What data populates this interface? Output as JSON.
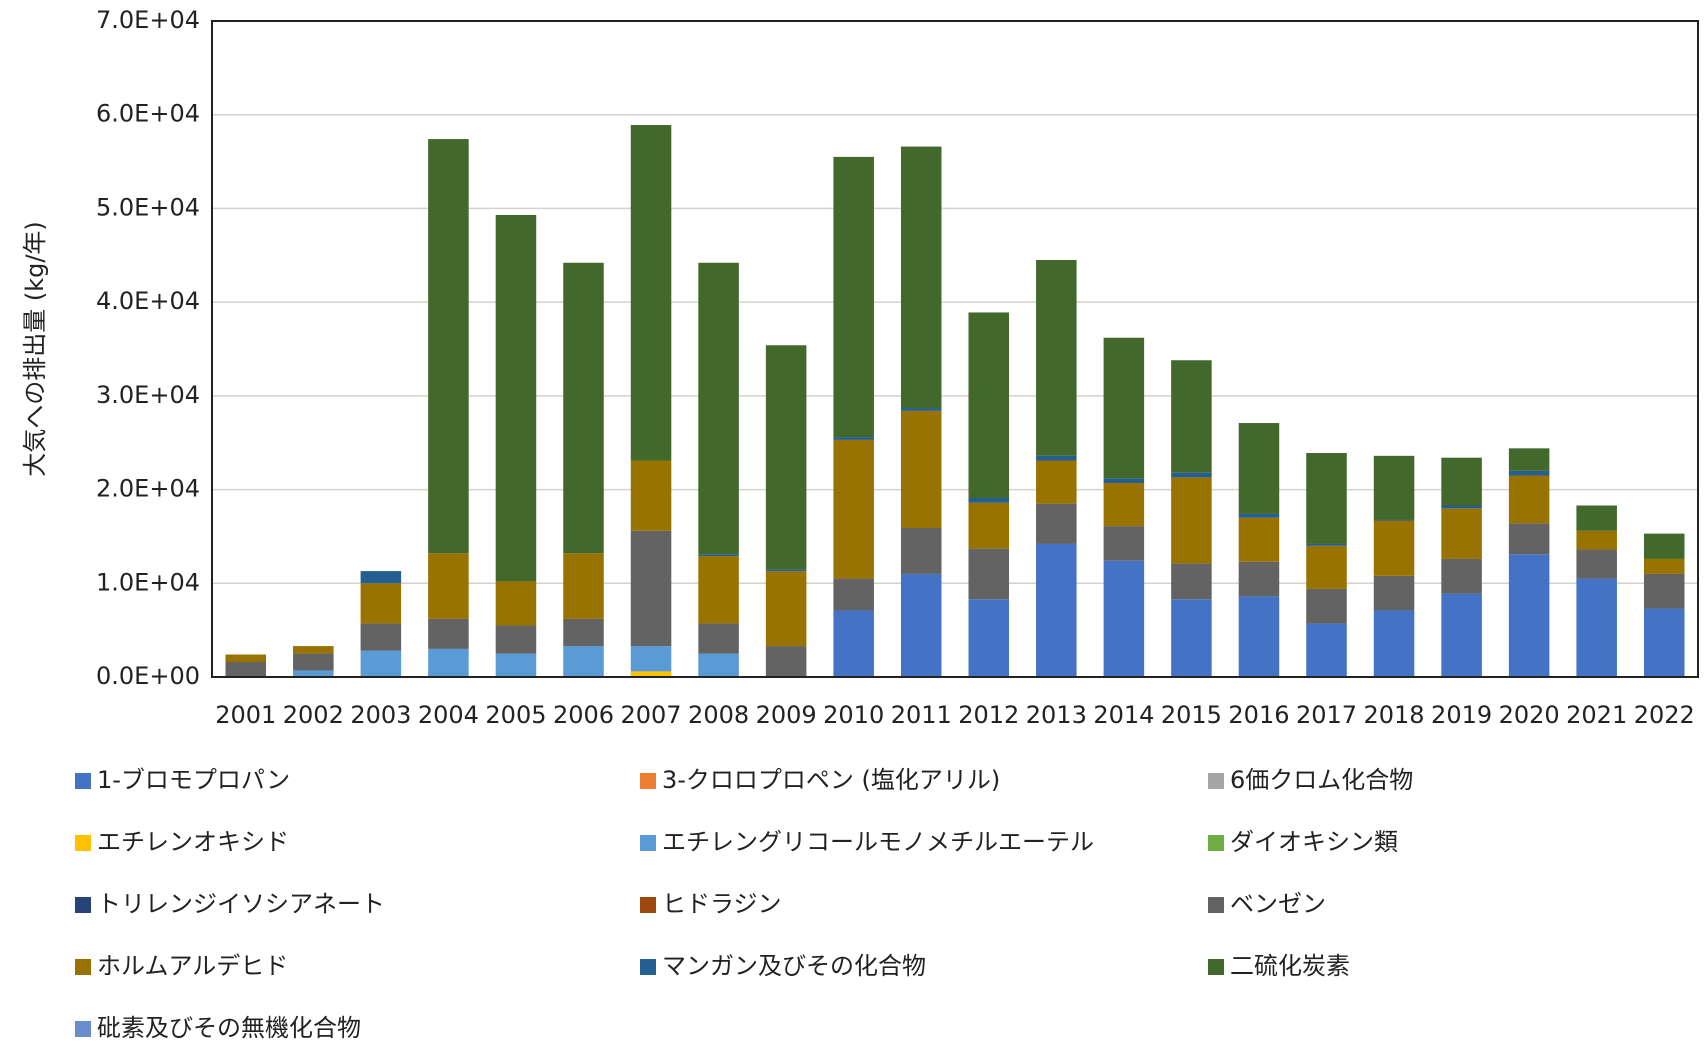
{
  "chart_data": {
    "type": "stacked-bar",
    "y_label": "大気への排出量 (kg/年)",
    "categories": [
      "2001",
      "2002",
      "2003",
      "2004",
      "2005",
      "2006",
      "2007",
      "2008",
      "2009",
      "2010",
      "2011",
      "2012",
      "2013",
      "2014",
      "2015",
      "2016",
      "2017",
      "2018",
      "2019",
      "2020",
      "2021",
      "2022"
    ],
    "ylim": [
      0,
      70000
    ],
    "yticks": [
      {
        "value": 0,
        "label": "0.0E+00"
      },
      {
        "value": 10000,
        "label": "1.0E+04"
      },
      {
        "value": 20000,
        "label": "2.0E+04"
      },
      {
        "value": 30000,
        "label": "3.0E+04"
      },
      {
        "value": 40000,
        "label": "4.0E+04"
      },
      {
        "value": 50000,
        "label": "5.0E+04"
      },
      {
        "value": 60000,
        "label": "6.0E+04"
      },
      {
        "value": 70000,
        "label": "7.0E+04"
      }
    ],
    "grid": true,
    "legend": "bottom",
    "series": [
      {
        "name": "1-ブロモプロパン",
        "color": "#4472c4",
        "values": [
          0,
          0,
          0,
          0,
          0,
          0,
          0,
          0,
          0,
          7100,
          11000,
          8300,
          14200,
          12400,
          8300,
          8600,
          5700,
          7100,
          8900,
          13100,
          10500,
          7300
        ]
      },
      {
        "name": "3-クロロプロペン (塩化アリル)",
        "color": "#ed7d31",
        "values": [
          0,
          0,
          0,
          0,
          0,
          0,
          0,
          0,
          0,
          0,
          0,
          0,
          0,
          0,
          0,
          0,
          0,
          0,
          0,
          0,
          0,
          0
        ]
      },
      {
        "name": "6価クロム化合物",
        "color": "#a5a5a5",
        "values": [
          0,
          0,
          0,
          0,
          0,
          0,
          0,
          0,
          0,
          0,
          0,
          0,
          0,
          0,
          0,
          0,
          0,
          0,
          0,
          0,
          0,
          0
        ]
      },
      {
        "name": "エチレンオキシド",
        "color": "#ffc000",
        "values": [
          0,
          0,
          0,
          0,
          0,
          0,
          600,
          0,
          0,
          0,
          0,
          0,
          0,
          0,
          0,
          0,
          0,
          0,
          0,
          0,
          0,
          0
        ]
      },
      {
        "name": "エチレングリコールモノメチルエーテル",
        "color": "#5b9bd5",
        "values": [
          0,
          700,
          2800,
          3000,
          2500,
          3300,
          2700,
          2500,
          0,
          0,
          0,
          0,
          0,
          0,
          0,
          0,
          0,
          0,
          0,
          0,
          0,
          0
        ]
      },
      {
        "name": "ダイオキシン類",
        "color": "#70ad47",
        "values": [
          0,
          0,
          0,
          0,
          0,
          0,
          0,
          0,
          0,
          0,
          0,
          0,
          0,
          0,
          0,
          0,
          0,
          0,
          0,
          0,
          0,
          0
        ]
      },
      {
        "name": "トリレンジイソシアネート",
        "color": "#264478",
        "values": [
          0,
          0,
          0,
          0,
          0,
          0,
          0,
          0,
          0,
          0,
          0,
          0,
          0,
          0,
          0,
          0,
          0,
          0,
          0,
          0,
          0,
          0
        ]
      },
      {
        "name": "ヒドラジン",
        "color": "#9e480e",
        "values": [
          0,
          0,
          0,
          0,
          0,
          0,
          0,
          0,
          0,
          0,
          0,
          0,
          0,
          0,
          0,
          0,
          0,
          0,
          0,
          0,
          0,
          0
        ]
      },
      {
        "name": "ベンゼン",
        "color": "#636363",
        "values": [
          1600,
          1800,
          2900,
          3200,
          3000,
          2900,
          12300,
          3200,
          3300,
          3400,
          4900,
          5400,
          4300,
          3700,
          3800,
          3700,
          3700,
          3700,
          3700,
          3300,
          3100,
          3700
        ]
      },
      {
        "name": "ホルムアルデヒド",
        "color": "#997300",
        "values": [
          800,
          800,
          4300,
          7000,
          4700,
          7000,
          7500,
          7200,
          8000,
          14800,
          12500,
          4900,
          4600,
          4600,
          9200,
          4700,
          4600,
          5900,
          5400,
          5100,
          2000,
          1600
        ]
      },
      {
        "name": "マンガン及びその化合物",
        "color": "#255e91",
        "values": [
          0,
          0,
          1300,
          0,
          0,
          0,
          0,
          200,
          200,
          300,
          300,
          500,
          500,
          500,
          500,
          400,
          200,
          100,
          300,
          500,
          0,
          0
        ]
      },
      {
        "name": "二硫化炭素",
        "color": "#43682b",
        "values": [
          0,
          0,
          0,
          44200,
          39100,
          31000,
          35800,
          31100,
          23900,
          29900,
          27900,
          19800,
          20900,
          15000,
          12000,
          9700,
          9700,
          6800,
          5100,
          2400,
          2700,
          2700
        ]
      },
      {
        "name": "砒素及びその無機化合物",
        "color": "#698ed0",
        "values": [
          0,
          0,
          0,
          0,
          0,
          0,
          0,
          0,
          0,
          0,
          0,
          0,
          0,
          0,
          0,
          0,
          0,
          0,
          0,
          0,
          0,
          0
        ]
      }
    ]
  }
}
